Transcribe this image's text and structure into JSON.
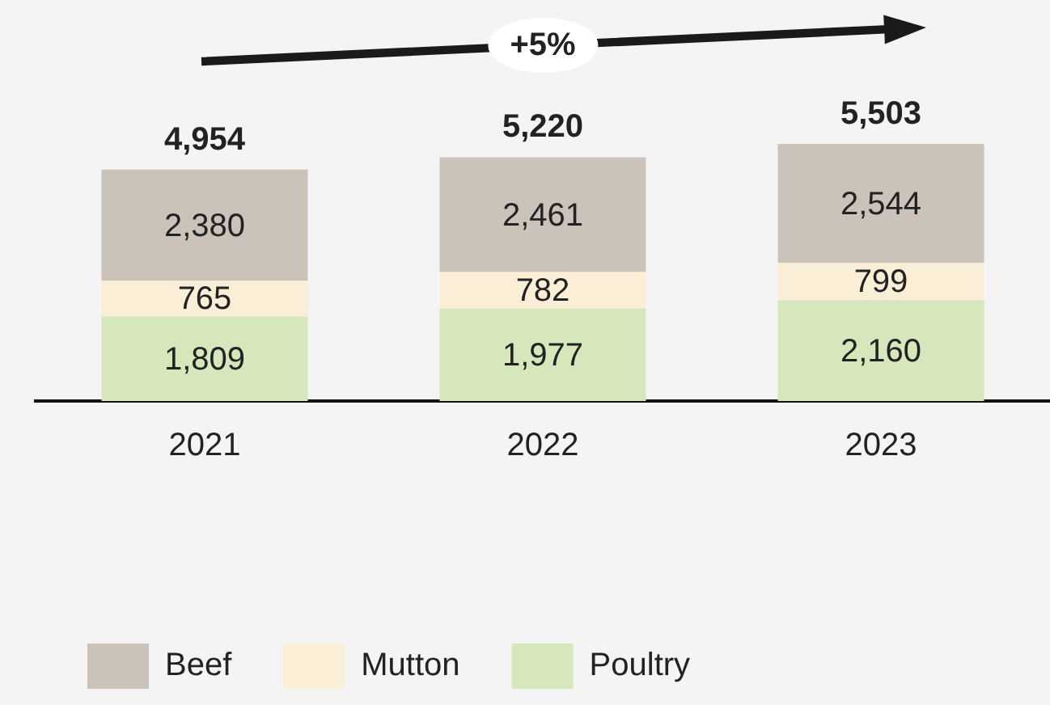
{
  "chart_data": {
    "type": "bar",
    "categories": [
      "2021",
      "2022",
      "2023"
    ],
    "series": [
      {
        "name": "Poultry",
        "color": "#d6e7bc",
        "values": [
          1809,
          1977,
          2160
        ],
        "value_labels": [
          "1,809",
          "1,977",
          "2,160"
        ]
      },
      {
        "name": "Mutton",
        "color": "#faeed6",
        "values": [
          765,
          782,
          799
        ],
        "value_labels": [
          "765",
          "782",
          "799"
        ]
      },
      {
        "name": "Beef",
        "color": "#cbc2b9",
        "values": [
          2380,
          2461,
          2544
        ],
        "value_labels": [
          "2,380",
          "2,461",
          "2,544"
        ]
      }
    ],
    "stacked": true,
    "totals": [
      "4,954",
      "5,220",
      "5,503"
    ],
    "annotations": [
      "+5%"
    ],
    "legend": "bottom"
  }
}
